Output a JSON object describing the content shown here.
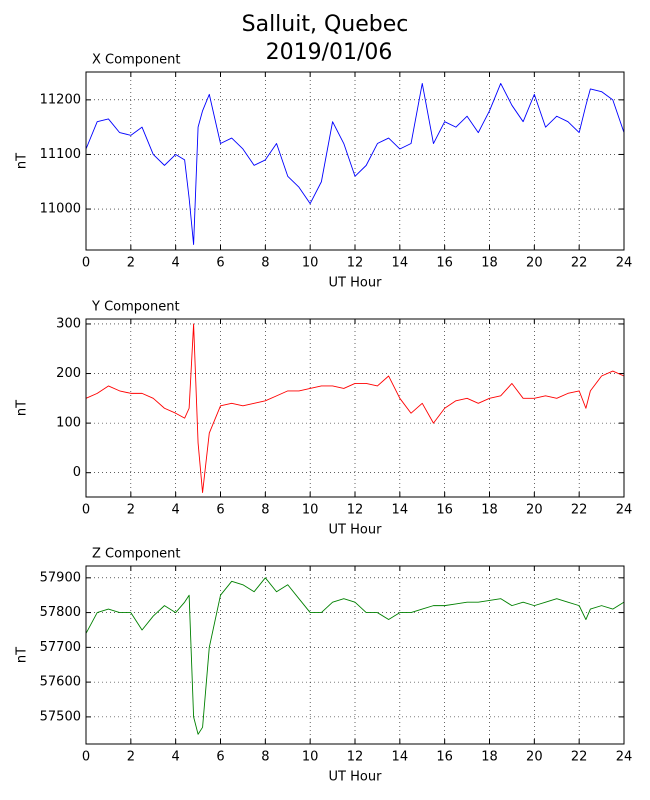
{
  "title": "Salluit, Quebec",
  "subtitle": "2019/01/06",
  "chart_data": [
    {
      "type": "line",
      "title": "X Component",
      "xlabel": "UT Hour",
      "ylabel": "nT",
      "color": "#0000ff",
      "grid": true,
      "x": [
        0,
        0.5,
        1,
        1.5,
        2,
        2.5,
        3,
        3.5,
        4,
        4.4,
        4.6,
        4.8,
        5,
        5.2,
        5.5,
        6,
        6.5,
        7,
        7.5,
        8,
        8.5,
        9,
        9.5,
        10,
        10.5,
        11,
        11.5,
        12,
        12.5,
        13,
        13.5,
        14,
        14.5,
        15,
        15.5,
        16,
        16.5,
        17,
        17.5,
        18,
        18.5,
        19,
        19.5,
        20,
        20.5,
        21,
        21.5,
        22,
        22.3,
        22.5,
        23,
        23.5,
        24
      ],
      "values": [
        11110,
        11160,
        11165,
        11140,
        11135,
        11150,
        11100,
        11080,
        11100,
        11090,
        11020,
        10935,
        11150,
        11180,
        11210,
        11120,
        11130,
        11110,
        11080,
        11090,
        11120,
        11060,
        11040,
        11010,
        11050,
        11160,
        11120,
        11060,
        11080,
        11120,
        11130,
        11110,
        11120,
        11230,
        11120,
        11160,
        11150,
        11170,
        11140,
        11180,
        11230,
        11190,
        11160,
        11210,
        11150,
        11170,
        11160,
        11140,
        11190,
        11220,
        11215,
        11200,
        11140
      ],
      "xlim": [
        0,
        24
      ],
      "xticks": [
        0,
        2,
        4,
        6,
        8,
        10,
        12,
        14,
        16,
        18,
        20,
        22,
        24
      ],
      "ylim": [
        10925,
        11251
      ],
      "yticks": [
        11000,
        11100,
        11200
      ]
    },
    {
      "type": "line",
      "title": "Y Component",
      "xlabel": "UT Hour",
      "ylabel": "nT",
      "color": "#ff0000",
      "grid": true,
      "x": [
        0,
        0.5,
        1,
        1.5,
        2,
        2.5,
        3,
        3.5,
        4,
        4.4,
        4.6,
        4.8,
        5,
        5.2,
        5.5,
        6,
        6.5,
        7,
        7.5,
        8,
        8.5,
        9,
        9.5,
        10,
        10.5,
        11,
        11.5,
        12,
        12.5,
        13,
        13.5,
        14,
        14.5,
        15,
        15.5,
        16,
        16.5,
        17,
        17.5,
        18,
        18.5,
        19,
        19.5,
        20,
        20.5,
        21,
        21.5,
        22,
        22.3,
        22.5,
        23,
        23.5,
        24
      ],
      "values": [
        150,
        160,
        175,
        165,
        160,
        160,
        150,
        130,
        120,
        110,
        130,
        300,
        60,
        -40,
        80,
        135,
        140,
        135,
        140,
        145,
        155,
        165,
        165,
        170,
        175,
        175,
        170,
        180,
        180,
        175,
        195,
        150,
        120,
        140,
        100,
        130,
        145,
        150,
        140,
        150,
        155,
        180,
        150,
        150,
        155,
        150,
        160,
        165,
        130,
        165,
        195,
        205,
        195
      ],
      "xlim": [
        0,
        24
      ],
      "xticks": [
        0,
        2,
        4,
        6,
        8,
        10,
        12,
        14,
        16,
        18,
        20,
        22,
        24
      ],
      "ylim": [
        -49,
        310
      ],
      "yticks": [
        0,
        100,
        200,
        300
      ]
    },
    {
      "type": "line",
      "title": "Z Component",
      "xlabel": "UT Hour",
      "ylabel": "nT",
      "color": "#008000",
      "grid": true,
      "x": [
        0,
        0.5,
        1,
        1.5,
        2,
        2.5,
        3,
        3.5,
        4,
        4.4,
        4.6,
        4.8,
        5,
        5.2,
        5.5,
        6,
        6.5,
        7,
        7.5,
        8,
        8.5,
        9,
        9.5,
        10,
        10.5,
        11,
        11.5,
        12,
        12.5,
        13,
        13.5,
        14,
        14.5,
        15,
        15.5,
        16,
        16.5,
        17,
        17.5,
        18,
        18.5,
        19,
        19.5,
        20,
        20.5,
        21,
        21.5,
        22,
        22.3,
        22.5,
        23,
        23.5,
        24
      ],
      "values": [
        57740,
        57800,
        57810,
        57800,
        57800,
        57750,
        57790,
        57820,
        57800,
        57830,
        57850,
        57500,
        57450,
        57470,
        57700,
        57850,
        57890,
        57880,
        57860,
        57900,
        57860,
        57880,
        57840,
        57800,
        57800,
        57830,
        57840,
        57830,
        57800,
        57800,
        57780,
        57800,
        57800,
        57810,
        57820,
        57820,
        57825,
        57830,
        57830,
        57835,
        57840,
        57820,
        57830,
        57820,
        57830,
        57840,
        57830,
        57820,
        57780,
        57810,
        57820,
        57810,
        57830
      ],
      "xlim": [
        0,
        24
      ],
      "xticks": [
        0,
        2,
        4,
        6,
        8,
        10,
        12,
        14,
        16,
        18,
        20,
        22,
        24
      ],
      "ylim": [
        57422,
        57934
      ],
      "yticks": [
        57500,
        57600,
        57700,
        57800,
        57900
      ]
    }
  ]
}
